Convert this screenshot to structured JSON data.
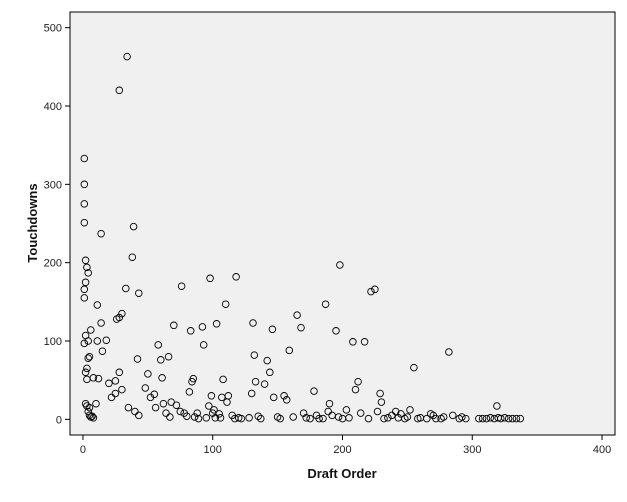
{
  "chart_data": {
    "type": "scatter",
    "xlabel": "Draft Order",
    "ylabel": "Touchdowns",
    "xlim": [
      -10,
      410
    ],
    "ylim": [
      -20,
      520
    ],
    "xticks": [
      0,
      100,
      200,
      300,
      400
    ],
    "yticks": [
      0,
      100,
      200,
      300,
      400,
      500
    ],
    "grid": false,
    "marker": "open-circle",
    "colors": {
      "plot_background": "#f0f0f0",
      "marker": "#000000",
      "axis": "#000000"
    },
    "points": [
      [
        1,
        333
      ],
      [
        1,
        300
      ],
      [
        1,
        275
      ],
      [
        1,
        251
      ],
      [
        2,
        203
      ],
      [
        3,
        194
      ],
      [
        2,
        175
      ],
      [
        4,
        187
      ],
      [
        1,
        166
      ],
      [
        1,
        155
      ],
      [
        6,
        114
      ],
      [
        2,
        107
      ],
      [
        4,
        100
      ],
      [
        1,
        97
      ],
      [
        5,
        80
      ],
      [
        4,
        78
      ],
      [
        3,
        65
      ],
      [
        2,
        60
      ],
      [
        3,
        51
      ],
      [
        8,
        53
      ],
      [
        12,
        52
      ],
      [
        2,
        20
      ],
      [
        3,
        17
      ],
      [
        5,
        15
      ],
      [
        4,
        10
      ],
      [
        5,
        5
      ],
      [
        6,
        3
      ],
      [
        7,
        4
      ],
      [
        8,
        2
      ],
      [
        10,
        20
      ],
      [
        14,
        237
      ],
      [
        28,
        420
      ],
      [
        34,
        463
      ],
      [
        39,
        246
      ],
      [
        38,
        207
      ],
      [
        43,
        161
      ],
      [
        33,
        167
      ],
      [
        30,
        135
      ],
      [
        26,
        128
      ],
      [
        28,
        130
      ],
      [
        11,
        146
      ],
      [
        14,
        123
      ],
      [
        15,
        87
      ],
      [
        18,
        101
      ],
      [
        11,
        100
      ],
      [
        20,
        46
      ],
      [
        25,
        33
      ],
      [
        25,
        49
      ],
      [
        22,
        28
      ],
      [
        28,
        60
      ],
      [
        30,
        38
      ],
      [
        35,
        15
      ],
      [
        40,
        10
      ],
      [
        42,
        77
      ],
      [
        43,
        5
      ],
      [
        48,
        40
      ],
      [
        50,
        58
      ],
      [
        52,
        28
      ],
      [
        55,
        32
      ],
      [
        56,
        15
      ],
      [
        58,
        95
      ],
      [
        60,
        76
      ],
      [
        61,
        53
      ],
      [
        62,
        20
      ],
      [
        64,
        8
      ],
      [
        66,
        80
      ],
      [
        67,
        3
      ],
      [
        68,
        22
      ],
      [
        70,
        120
      ],
      [
        72,
        18
      ],
      [
        75,
        10
      ],
      [
        76,
        170
      ],
      [
        78,
        8
      ],
      [
        80,
        4
      ],
      [
        82,
        35
      ],
      [
        83,
        113
      ],
      [
        84,
        48
      ],
      [
        85,
        52
      ],
      [
        86,
        3
      ],
      [
        88,
        8
      ],
      [
        89,
        1
      ],
      [
        92,
        118
      ],
      [
        93,
        95
      ],
      [
        95,
        2
      ],
      [
        97,
        17
      ],
      [
        98,
        180
      ],
      [
        99,
        30
      ],
      [
        100,
        8
      ],
      [
        101,
        12
      ],
      [
        102,
        2
      ],
      [
        103,
        122
      ],
      [
        105,
        7
      ],
      [
        106,
        2
      ],
      [
        107,
        28
      ],
      [
        108,
        51
      ],
      [
        110,
        147
      ],
      [
        111,
        22
      ],
      [
        112,
        30
      ],
      [
        115,
        5
      ],
      [
        117,
        1
      ],
      [
        118,
        182
      ],
      [
        120,
        2
      ],
      [
        122,
        1
      ],
      [
        128,
        2
      ],
      [
        130,
        33
      ],
      [
        131,
        123
      ],
      [
        132,
        82
      ],
      [
        133,
        48
      ],
      [
        135,
        4
      ],
      [
        137,
        1
      ],
      [
        140,
        45
      ],
      [
        142,
        75
      ],
      [
        144,
        60
      ],
      [
        146,
        115
      ],
      [
        147,
        28
      ],
      [
        150,
        3
      ],
      [
        152,
        1
      ],
      [
        155,
        30
      ],
      [
        157,
        25
      ],
      [
        159,
        88
      ],
      [
        162,
        3
      ],
      [
        165,
        133
      ],
      [
        168,
        117
      ],
      [
        170,
        8
      ],
      [
        172,
        2
      ],
      [
        175,
        1
      ],
      [
        178,
        36
      ],
      [
        180,
        5
      ],
      [
        182,
        1
      ],
      [
        185,
        1
      ],
      [
        187,
        147
      ],
      [
        189,
        10
      ],
      [
        190,
        20
      ],
      [
        192,
        5
      ],
      [
        195,
        113
      ],
      [
        197,
        3
      ],
      [
        198,
        197
      ],
      [
        200,
        1
      ],
      [
        203,
        12
      ],
      [
        205,
        2
      ],
      [
        208,
        99
      ],
      [
        210,
        38
      ],
      [
        212,
        48
      ],
      [
        214,
        8
      ],
      [
        217,
        99
      ],
      [
        220,
        1
      ],
      [
        222,
        163
      ],
      [
        225,
        166
      ],
      [
        227,
        10
      ],
      [
        229,
        33
      ],
      [
        230,
        22
      ],
      [
        232,
        1
      ],
      [
        235,
        2
      ],
      [
        238,
        5
      ],
      [
        241,
        10
      ],
      [
        243,
        2
      ],
      [
        245,
        7
      ],
      [
        248,
        1
      ],
      [
        250,
        3
      ],
      [
        252,
        12
      ],
      [
        255,
        66
      ],
      [
        258,
        1
      ],
      [
        260,
        2
      ],
      [
        265,
        1
      ],
      [
        268,
        7
      ],
      [
        270,
        5
      ],
      [
        272,
        1
      ],
      [
        276,
        1
      ],
      [
        278,
        3
      ],
      [
        282,
        86
      ],
      [
        285,
        5
      ],
      [
        290,
        1
      ],
      [
        292,
        3
      ],
      [
        295,
        1
      ],
      [
        305,
        1
      ],
      [
        308,
        1
      ],
      [
        311,
        1
      ],
      [
        314,
        2
      ],
      [
        317,
        1
      ],
      [
        319,
        17
      ],
      [
        320,
        2
      ],
      [
        322,
        1
      ],
      [
        325,
        2
      ],
      [
        328,
        1
      ],
      [
        331,
        1
      ],
      [
        334,
        1
      ],
      [
        337,
        1
      ]
    ]
  }
}
